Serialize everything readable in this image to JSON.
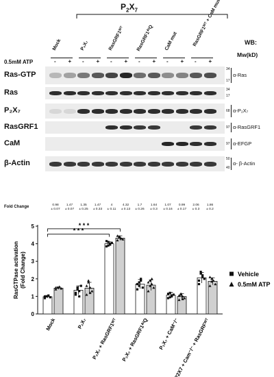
{
  "header": {
    "group_title_main": "P",
    "group_title_sub": "2",
    "group_title_tail": "X",
    "group_title_sub2": "7",
    "wb_label": "WB:",
    "mw_label": "Mw(kD)",
    "atp_label": "0.5mM ATP"
  },
  "columns": [
    {
      "label": "Mock"
    },
    {
      "label": "P₂X₇"
    },
    {
      "label": "RasGRF1ᵂᵀ"
    },
    {
      "label": "RasGRF1ᐞᴵQ"
    },
    {
      "label": "CaM mut"
    },
    {
      "label": "RasGRF1ᵂᵀ + CaM mut"
    }
  ],
  "lane_signs": [
    "-",
    "+",
    "-",
    "+",
    "-",
    "+",
    "-",
    "+",
    "-",
    "+",
    "-",
    "+"
  ],
  "blot_rows": [
    {
      "label": "Ras-GTP",
      "antibody": "α-Ras",
      "mw": [
        "34",
        "17"
      ],
      "intensity": [
        0.25,
        0.35,
        0.55,
        0.7,
        0.8,
        0.95,
        0.6,
        0.7,
        0.45,
        0.5,
        0.7,
        0.75
      ]
    },
    {
      "label": "Ras",
      "antibody": "",
      "mw": [
        "34",
        "17"
      ],
      "intensity": [
        0.9,
        0.9,
        0.9,
        0.9,
        0.9,
        0.9,
        0.9,
        0.9,
        0.9,
        0.9,
        0.9,
        0.9
      ]
    },
    {
      "label": "P₂X₇",
      "antibody": "α-P₂X₇",
      "mw": [
        "68"
      ],
      "intensity": [
        0.1,
        0.1,
        0.9,
        0.9,
        0.9,
        0.9,
        0.9,
        0.9,
        0.9,
        0.9,
        0.9,
        0.9
      ]
    },
    {
      "label": "RasGRF1",
      "antibody": "α-RasGRF1",
      "mw": [
        "97"
      ],
      "intensity": [
        0,
        0,
        0,
        0,
        0.9,
        0.9,
        0.85,
        0.85,
        0,
        0,
        0.85,
        0.85
      ]
    },
    {
      "label": "CaM",
      "antibody": "α-EFGP",
      "mw": [
        "97"
      ],
      "intensity": [
        0,
        0,
        0,
        0,
        0,
        0,
        0,
        0,
        0.95,
        0.95,
        0.9,
        0.9
      ]
    },
    {
      "label": "β-Actin",
      "antibody": "α- β-Actin",
      "mw": [
        "50",
        "40"
      ],
      "intensity": [
        0.85,
        0.85,
        0.85,
        0.85,
        0.85,
        0.85,
        0.85,
        0.85,
        0.85,
        0.85,
        0.85,
        0.85
      ]
    }
  ],
  "fold_change": {
    "label": "Fold Change",
    "values": [
      {
        "mean": "0.98",
        "sd": "± 0.07"
      },
      {
        "mean": "1.47",
        "sd": "± 0.07"
      },
      {
        "mean": "1.35",
        "sd": "± 0.25"
      },
      {
        "mean": "1.47",
        "sd": "± 0.33"
      },
      {
        "mean": "4",
        "sd": "± 0.11"
      },
      {
        "mean": "4.32",
        "sd": "± 0.13"
      },
      {
        "mean": "1.7",
        "sd": "± 0.26"
      },
      {
        "mean": "1.64",
        "sd": "± 0.3"
      },
      {
        "mean": "1.07",
        "sd": "± 0.16"
      },
      {
        "mean": "0.99",
        "sd": "± 0.17"
      },
      {
        "mean": "2.06",
        "sd": "± 0.3"
      },
      {
        "mean": "1.86",
        "sd": "± 0.2"
      }
    ]
  },
  "chart_data": {
    "type": "bar",
    "categories": [
      "Mock",
      "P₂X₇",
      "P₂X₇ + RasGRF1ᵂᵀ",
      "P₂X₇ + RasGRF1ᐞᴵQ",
      "P₂X₇ + CaM⁻/⁻",
      "P2X7 + Cam⁻/⁻ + RasGRFᵂᵀ"
    ],
    "series": [
      {
        "name": "Vehicle",
        "color": "#ffffff",
        "marker": "square",
        "values": [
          0.98,
          1.35,
          4.0,
          1.7,
          1.07,
          2.06
        ],
        "errors": [
          0.07,
          0.25,
          0.11,
          0.26,
          0.16,
          0.3
        ],
        "points": [
          [
            0.9,
            1.0,
            1.05,
            0.95,
            1.0
          ],
          [
            1.1,
            1.5,
            1.3,
            1.6,
            1.2,
            1.4,
            1.0
          ],
          [
            3.85,
            4.1,
            3.95,
            4.05,
            4.15,
            3.9,
            4.0
          ],
          [
            1.4,
            1.8,
            1.9,
            1.5,
            1.7,
            1.6,
            2.0
          ],
          [
            0.9,
            1.2,
            1.0,
            1.1,
            1.15,
            0.95,
            1.05
          ],
          [
            1.7,
            2.3,
            2.1,
            2.0,
            1.9,
            2.4,
            2.2
          ]
        ]
      },
      {
        "name": "0.5mM ATP",
        "color": "#d0d0d0",
        "marker": "triangle",
        "values": [
          1.47,
          1.47,
          4.32,
          1.64,
          0.99,
          1.86
        ],
        "errors": [
          0.07,
          0.33,
          0.13,
          0.3,
          0.17,
          0.2
        ],
        "points": [
          [
            1.4,
            1.5,
            1.55,
            1.45,
            1.5
          ],
          [
            1.1,
            1.8,
            1.5,
            1.3,
            1.6,
            1.9,
            1.2
          ],
          [
            4.2,
            4.4,
            4.3,
            4.25,
            4.45,
            4.35,
            4.3
          ],
          [
            1.3,
            1.9,
            1.7,
            1.5,
            1.8,
            1.6,
            2.0
          ],
          [
            0.8,
            1.1,
            1.0,
            0.9,
            1.05,
            1.15,
            0.85
          ],
          [
            1.6,
            2.0,
            1.9,
            1.7,
            2.1,
            1.85
          ]
        ]
      }
    ],
    "ylabel": "RasGTPase activation (Fold Change)",
    "ylim": [
      0,
      5
    ],
    "yticks": [
      0,
      1,
      2,
      3,
      4,
      5
    ],
    "significance": [
      {
        "label": "* * *",
        "from": "Mock",
        "to": "P₂X₇ + RasGRF1ᵂᵀ (ATP)"
      },
      {
        "label": "* * *",
        "from": "Mock",
        "to": "P₂X₇ + RasGRF1ᵂᵀ (Vehicle)"
      }
    ],
    "legend_position": "right"
  }
}
